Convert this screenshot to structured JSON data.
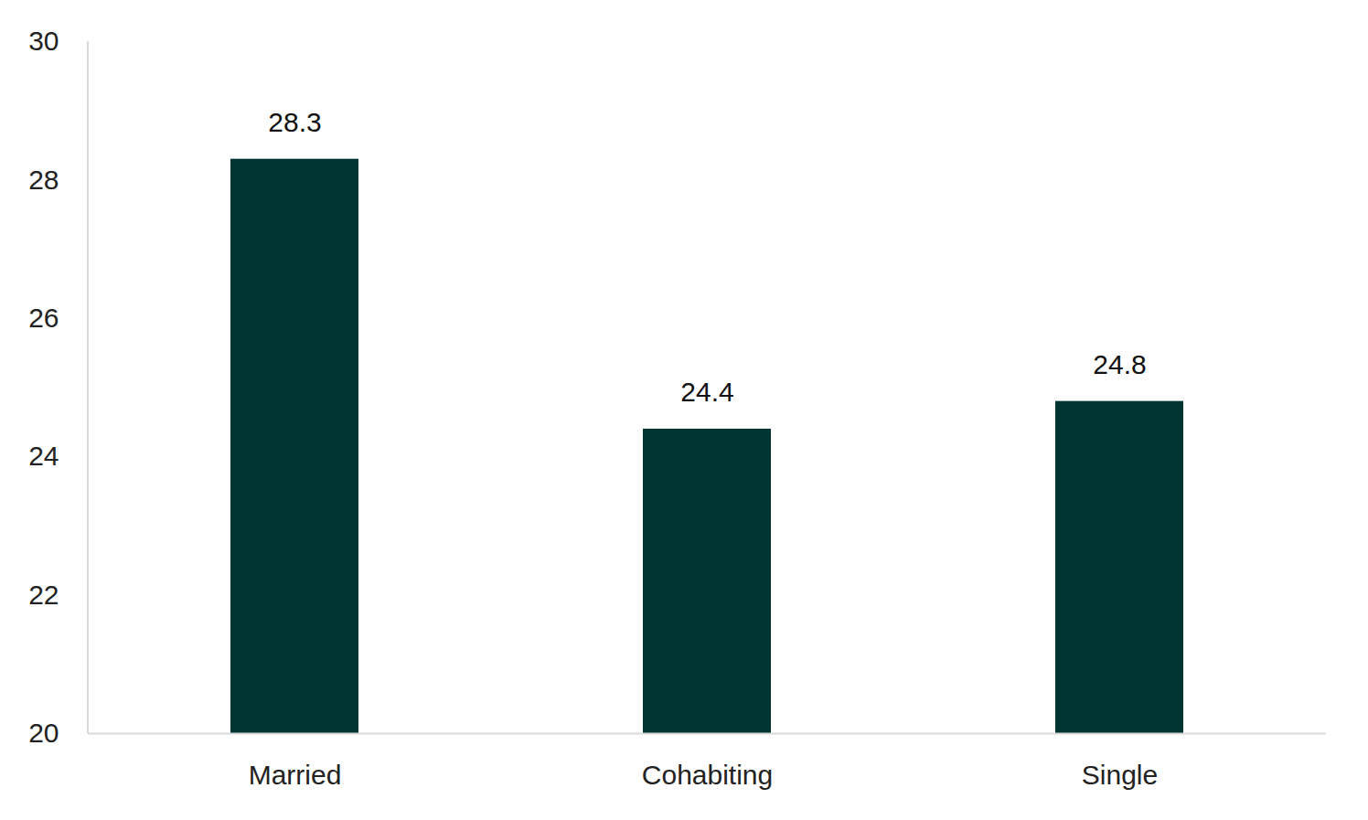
{
  "chart_data": {
    "type": "bar",
    "categories": [
      "Married",
      "Cohabiting",
      "Single"
    ],
    "values": [
      28.3,
      24.4,
      24.8
    ],
    "color": "#003533",
    "ylim": [
      20,
      30
    ],
    "yticks": [
      20,
      22,
      24,
      26,
      28,
      30
    ],
    "grid": false,
    "data_labels": true
  }
}
